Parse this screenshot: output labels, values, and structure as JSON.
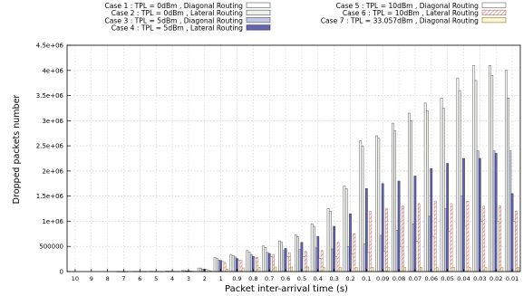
{
  "chart_data": {
    "type": "bar",
    "title": "",
    "xlabel": "Packet inter-arrival time (s)",
    "ylabel": "Dropped packets number",
    "ylim": [
      0,
      4500000
    ],
    "yticks": [
      0,
      500000,
      1000000,
      1500000,
      2000000,
      2500000,
      3000000,
      3500000,
      4000000,
      4500000
    ],
    "ytick_labels": [
      "0",
      "500000",
      "1e+06",
      "1.5e+06",
      "2e+06",
      "2.5e+06",
      "3e+06",
      "3.5e+06",
      "4e+06",
      "4.5e+06"
    ],
    "grid": true,
    "legend_position": "top",
    "categories": [
      "10",
      "9",
      "8",
      "7",
      "6",
      "5",
      "4",
      "3",
      "2",
      "1",
      "0.9",
      "0.8",
      "0.7",
      "0.6",
      "0.5",
      "0.4",
      "0.3",
      "0.2",
      "0.1",
      "0.09",
      "0.08",
      "0.07",
      "0.06",
      "0.05",
      "0.04",
      "0.03",
      "0.02",
      "0.01"
    ],
    "series": [
      {
        "name": "Case 1 : TPL = 0dBm , Diagonal Routing",
        "color": "#ffffff",
        "stroke": "#555555",
        "hatch": "none",
        "values": [
          0,
          0,
          0,
          2000,
          3000,
          5000,
          8000,
          20000,
          70000,
          280000,
          340000,
          420000,
          510000,
          610000,
          730000,
          950000,
          1250000,
          1700000,
          2600000,
          2700000,
          2950000,
          3150000,
          3350000,
          3450000,
          3850000,
          4100000,
          4100000,
          4000000
        ]
      },
      {
        "name": "Case 2 : TPL = 0dBm , Lateral Routing",
        "color": "#eef3ea",
        "stroke": "#555555",
        "hatch": "none",
        "values": [
          0,
          0,
          0,
          2000,
          3000,
          5000,
          8000,
          20000,
          70000,
          260000,
          320000,
          390000,
          480000,
          580000,
          690000,
          900000,
          1200000,
          1650000,
          2500000,
          2650000,
          2800000,
          3000000,
          3200000,
          3250000,
          3600000,
          3800000,
          3900000,
          3450000
        ]
      },
      {
        "name": "Case 3 : TPL = 5dBm , Diagonal Routing",
        "color": "#c3c7e8",
        "stroke": "#555555",
        "hatch": "none",
        "values": [
          0,
          0,
          0,
          1000,
          2000,
          3000,
          6000,
          15000,
          50000,
          230000,
          290000,
          340000,
          380000,
          420000,
          440000,
          470000,
          450000,
          500000,
          550000,
          720000,
          820000,
          950000,
          1100000,
          1250000,
          1500000,
          2400000,
          2400000,
          2400000
        ]
      },
      {
        "name": "Case 4 : TPL = 5dBm , Lateral Routing",
        "color": "#6464b0",
        "stroke": "#333355",
        "hatch": "none",
        "values": [
          0,
          0,
          0,
          1000,
          2000,
          3000,
          5000,
          15000,
          50000,
          220000,
          260000,
          300000,
          360000,
          460000,
          580000,
          700000,
          900000,
          1150000,
          1650000,
          1750000,
          1800000,
          1900000,
          2050000,
          2150000,
          2250000,
          2250000,
          2350000,
          1550000
        ]
      },
      {
        "name": "Case 5 : TPL = 10dBm , Diagonal Routing",
        "color": "#ffffff",
        "stroke": "#666666",
        "hatch": "none",
        "values": [
          0,
          0,
          0,
          1000,
          1500,
          3000,
          5000,
          15000,
          40000,
          200000,
          230000,
          270000,
          300000,
          300000,
          300000,
          260000,
          300000,
          350000,
          380000,
          400000,
          500000,
          600000,
          700000,
          800000,
          900000,
          1000000,
          1000000,
          1000000
        ]
      },
      {
        "name": "Case 6 : TPL = 10dBm , Lateral Routing",
        "color": "#ffffff",
        "stroke": "#c07070",
        "hatch": "diagonal",
        "values": [
          0,
          0,
          0,
          1000,
          1500,
          2000,
          4000,
          10000,
          30000,
          180000,
          230000,
          280000,
          330000,
          370000,
          400000,
          420000,
          580000,
          750000,
          1200000,
          1250000,
          1300000,
          1350000,
          1400000,
          1350000,
          1400000,
          1300000,
          1300000,
          1200000
        ]
      },
      {
        "name": "Case 7 : TPL = 33.057dBm , Diagonal Routing",
        "color": "#fbf6d2",
        "stroke": "#8a7a30",
        "hatch": "none",
        "values": [
          0,
          0,
          0,
          0,
          500,
          1000,
          2000,
          5000,
          10000,
          50000,
          70000,
          80000,
          90000,
          90000,
          90000,
          80000,
          80000,
          80000,
          80000,
          80000,
          80000,
          80000,
          80000,
          80000,
          80000,
          80000,
          80000,
          80000
        ]
      }
    ]
  }
}
